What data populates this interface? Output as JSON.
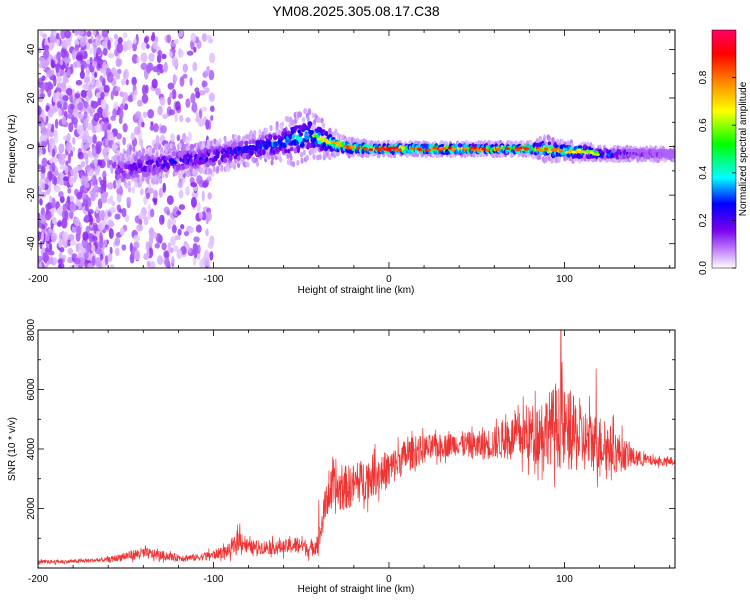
{
  "figure": {
    "title": "YM08.2025.305.08.17.C38"
  },
  "chart_data": [
    {
      "type": "heatmap",
      "title": "YM08.2025.305.08.17.C38",
      "xlabel": "Height of straight line (km)",
      "ylabel": "Frequency (Hz)",
      "xlim": [
        -200,
        163
      ],
      "ylim": [
        -50,
        48
      ],
      "x_ticks": [
        "-200",
        "-100",
        "0",
        "100"
      ],
      "y_ticks": [
        "40",
        "20",
        "0",
        "-20",
        "-40"
      ],
      "colorbar": {
        "label": "Normalized spectral amplitude",
        "range": [
          0.0,
          1.0
        ],
        "ticks": [
          "0.0",
          "0.2",
          "0.4",
          "0.6",
          "0.8"
        ],
        "colors": [
          "#ffffff",
          "#cc99ff",
          "#7700ee",
          "#0000ff",
          "#00ffff",
          "#00ff00",
          "#ffff00",
          "#ff8800",
          "#ff0000",
          "#ff0066"
        ]
      },
      "ridge": {
        "x": [
          -155,
          -140,
          -120,
          -100,
          -80,
          -65,
          -55,
          -45,
          -35,
          -25,
          -10,
          0,
          20,
          40,
          60,
          80,
          90,
          100,
          110,
          120,
          130,
          140,
          150,
          163
        ],
        "y": [
          -10,
          -8,
          -6,
          -4,
          -1,
          1,
          3,
          5,
          2,
          0,
          -1,
          -1,
          -1,
          -1,
          -1,
          -1,
          -1,
          -2,
          -2,
          -3,
          -3,
          -3,
          -3,
          -3
        ],
        "amplitude": [
          0.3,
          0.35,
          0.4,
          0.4,
          0.45,
          0.5,
          0.55,
          0.6,
          0.7,
          0.8,
          0.9,
          0.9,
          0.85,
          0.85,
          0.85,
          0.85,
          0.8,
          0.75,
          0.7,
          0.6,
          0.4,
          0.3,
          0.25,
          0.2
        ],
        "halfwidth": [
          6,
          6,
          5,
          5,
          5,
          6,
          8,
          8,
          5,
          3,
          2,
          2,
          2,
          2,
          2,
          2,
          4,
          3,
          3,
          2,
          2,
          2,
          2,
          2
        ]
      },
      "noise_regions": [
        {
          "x_range": [
            -200,
            -160
          ],
          "y_range": [
            -50,
            48
          ],
          "density": 0.9
        },
        {
          "x_range": [
            -160,
            -100
          ],
          "y_range": [
            -50,
            48
          ],
          "density": 0.35
        }
      ]
    },
    {
      "type": "line",
      "xlabel": "Height of straight line (km)",
      "ylabel": "SNR (10 * v/v)",
      "xlim": [
        -200,
        163
      ],
      "ylim": [
        0,
        8000
      ],
      "x_ticks": [
        "-200",
        "-100",
        "0",
        "100"
      ],
      "y_ticks": [
        "8000",
        "6000",
        "4000",
        "2000"
      ],
      "series": [
        {
          "name": "SNR",
          "color": "#ee3333",
          "envelope": {
            "x": [
              -200,
              -180,
              -160,
              -150,
              -140,
              -120,
              -110,
              -100,
              -90,
              -85,
              -80,
              -70,
              -60,
              -50,
              -45,
              -40,
              -35,
              -30,
              -20,
              -10,
              0,
              10,
              20,
              30,
              40,
              50,
              60,
              70,
              80,
              90,
              95,
              100,
              105,
              110,
              120,
              130,
              140,
              150,
              163
            ],
            "y": [
              200,
              220,
              280,
              400,
              500,
              350,
              350,
              450,
              600,
              1000,
              700,
              700,
              700,
              800,
              600,
              900,
              2500,
              2600,
              2800,
              3100,
              3300,
              3800,
              4000,
              4100,
              4200,
              4100,
              4200,
              4400,
              4500,
              4700,
              4800,
              4600,
              4500,
              4300,
              4200,
              3900,
              3700,
              3600,
              3550
            ],
            "noise": [
              80,
              80,
              100,
              200,
              250,
              150,
              150,
              200,
              300,
              500,
              300,
              300,
              300,
              400,
              300,
              500,
              900,
              1000,
              900,
              900,
              800,
              700,
              600,
              500,
              500,
              600,
              700,
              900,
              1200,
              1500,
              1700,
              1800,
              1600,
              1400,
              1200,
              900,
              400,
              200,
              150
            ]
          },
          "peaks": [
            {
              "x": 98,
              "y": 8000
            },
            {
              "x": 95,
              "y": 6200
            },
            {
              "x": 118,
              "y": 6700
            },
            {
              "x": -85,
              "y": 1500
            },
            {
              "x": -40,
              "y": 2300
            }
          ]
        }
      ]
    }
  ]
}
